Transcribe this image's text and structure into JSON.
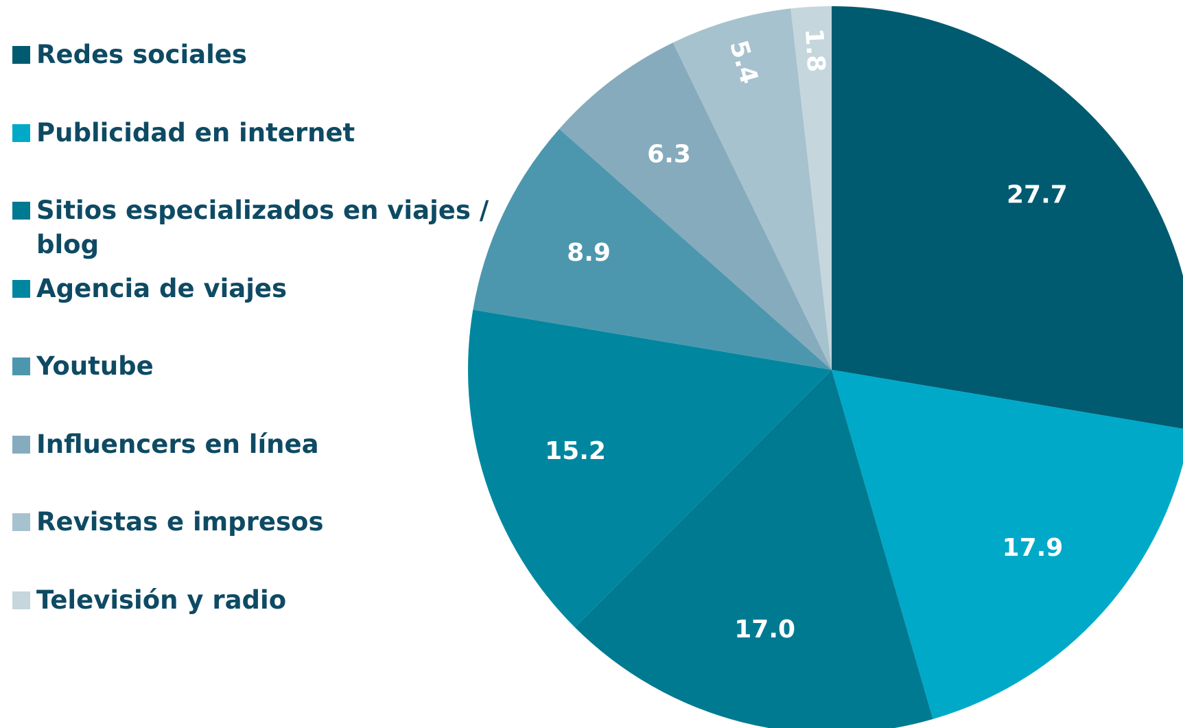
{
  "chart_data": {
    "type": "pie",
    "categories": [
      "Redes sociales",
      "Publicidad en internet",
      "Sitios especializados en viajes / blog",
      "Agencia de viajes",
      "Youtube",
      "Influencers en línea",
      "Revistas e impresos",
      "Televisión y radio"
    ],
    "values": [
      27.7,
      17.9,
      17.0,
      15.2,
      8.9,
      6.3,
      5.4,
      1.8
    ],
    "value_labels": [
      "27.7",
      "17.9",
      "17.0",
      "15.2",
      "8.9",
      "6.3",
      "5.4",
      "1.8"
    ],
    "colors": [
      "#005b70",
      "#00a9c8",
      "#007a91",
      "#00879f",
      "#4d97ae",
      "#86abbd",
      "#a6c2ce",
      "#c5d6dd"
    ],
    "legend": "left"
  }
}
